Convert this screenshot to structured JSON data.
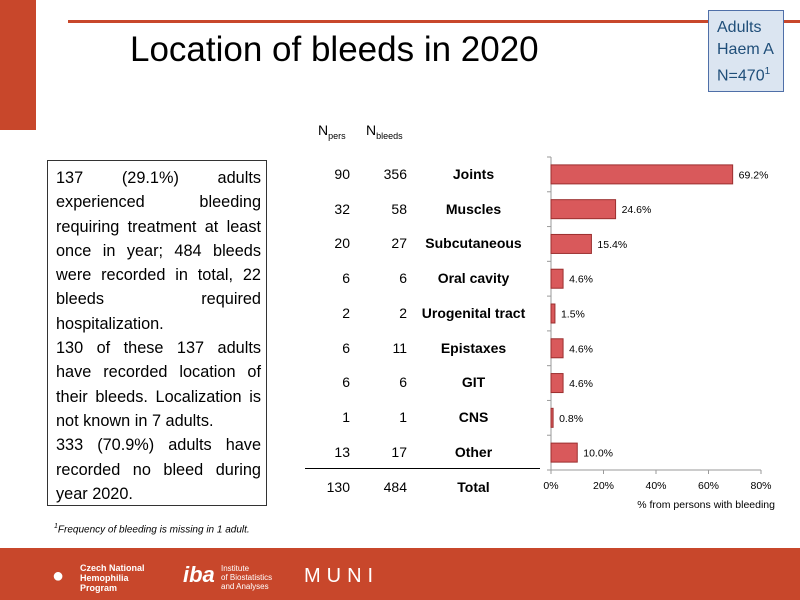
{
  "slide": {
    "title": "Location of bleeds in 2020",
    "badge": {
      "line1": "Adults",
      "line2": "Haem A",
      "line3": "N=470",
      "line3_sup": "1"
    },
    "summary": [
      "137 (29.1%) adults experienced bleeding requiring treatment at least once in year; 484 bleeds were recorded in total, 22 bleeds required hospitalization.",
      "130 of these 137 adults have recorded location of their bleeds. Localization is not known in 7 adults.",
      "333 (70.9%) adults have recorded no bleed during year 2020."
    ],
    "footnote": {
      "sup": "1",
      "text": "Frequency of bleeding is missing in 1 adult."
    },
    "table": {
      "col_npers": {
        "main": "N",
        "sub": "pers"
      },
      "col_nbleeds": {
        "main": "N",
        "sub": "bleeds"
      },
      "rows": [
        {
          "npers": "90",
          "nbleeds": "356",
          "location": "Joints"
        },
        {
          "npers": "32",
          "nbleeds": "58",
          "location": "Muscles"
        },
        {
          "npers": "20",
          "nbleeds": "27",
          "location": "Subcutaneous"
        },
        {
          "npers": "6",
          "nbleeds": "6",
          "location": "Oral cavity"
        },
        {
          "npers": "2",
          "nbleeds": "2",
          "location": "Urogenital tract"
        },
        {
          "npers": "6",
          "nbleeds": "11",
          "location": "Epistaxes"
        },
        {
          "npers": "6",
          "nbleeds": "6",
          "location": "GIT"
        },
        {
          "npers": "1",
          "nbleeds": "1",
          "location": "CNS"
        },
        {
          "npers": "13",
          "nbleeds": "17",
          "location": "Other"
        }
      ],
      "total": {
        "npers": "130",
        "nbleeds": "484",
        "location": "Total"
      }
    },
    "footer": {
      "logo1_lines": [
        "Czech National",
        "Hemophilia",
        "Program"
      ],
      "logo2_big": "iba",
      "logo2_lines": [
        "Institute",
        "of Biostatistics",
        "and Analyses"
      ],
      "logo3": "MUNI"
    },
    "colors": {
      "accent": "#c8472b",
      "bar_fill": "#d9595b",
      "bar_stroke": "#9b2f2f",
      "badge_bg": "#dbe5f1"
    }
  },
  "chart_data": {
    "type": "bar",
    "orientation": "horizontal",
    "categories": [
      "Joints",
      "Muscles",
      "Subcutaneous",
      "Oral cavity",
      "Urogenital tract",
      "Epistaxes",
      "GIT",
      "CNS",
      "Other"
    ],
    "values": [
      69.2,
      24.6,
      15.4,
      4.6,
      1.5,
      4.6,
      4.6,
      0.8,
      10.0
    ],
    "data_labels": [
      "69.2%",
      "24.6%",
      "15.4%",
      "4.6%",
      "1.5%",
      "4.6%",
      "4.6%",
      "0.8%",
      "10.0%"
    ],
    "xlim": [
      0,
      80
    ],
    "xticks": [
      "0%",
      "20%",
      "40%",
      "60%",
      "80%"
    ],
    "xtick_values": [
      0,
      20,
      40,
      60,
      80
    ],
    "xlabel": "% from persons with bleeding",
    "grid": false
  }
}
